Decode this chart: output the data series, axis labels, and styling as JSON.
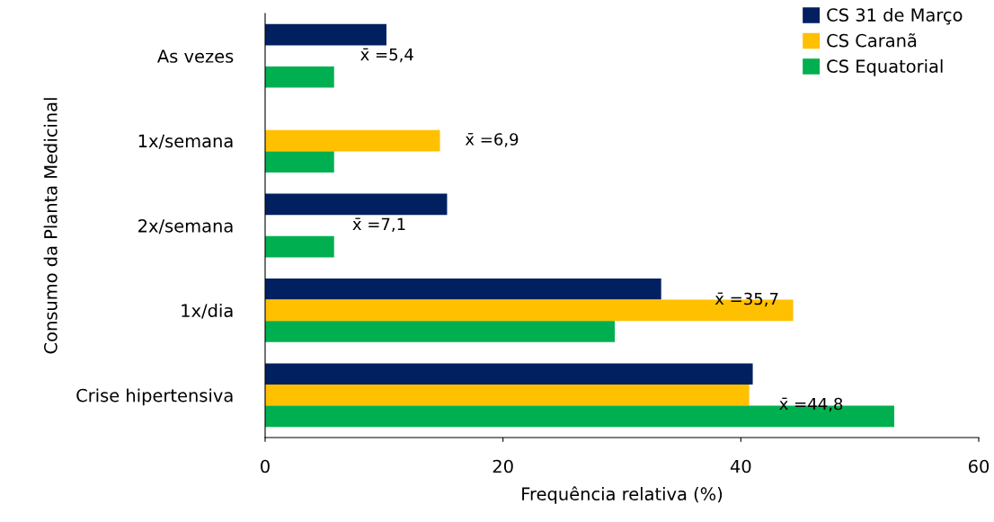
{
  "chart_data": {
    "type": "bar",
    "orientation": "horizontal",
    "xlabel": "Frequência relativa (%)",
    "ylabel": "Consumo da Planta Medicinal",
    "categories": [
      "As vezes",
      "1x/semana",
      "2x/semana",
      "1x/dia",
      "Crise hipertensiva"
    ],
    "series": [
      {
        "name": "CS 31 de Março",
        "color": "#002060",
        "values": [
          10.2,
          null,
          15.3,
          33.3,
          41.0
        ]
      },
      {
        "name": "CS Caranã",
        "color": "#ffc000",
        "values": [
          null,
          14.7,
          null,
          44.4,
          40.7
        ]
      },
      {
        "name": "CS Equatorial",
        "color": "#00b050",
        "values": [
          5.8,
          5.8,
          5.8,
          29.4,
          52.9
        ]
      }
    ],
    "xlim": [
      0,
      60
    ],
    "xticks": [
      0,
      20,
      40,
      60
    ],
    "grid": false,
    "legend": "top right",
    "annotations": [
      "x̄ =5,4",
      "x̄ =6,9",
      "x̄ =7,1",
      "x̄ =35,7",
      "x̄ =44,8"
    ]
  }
}
